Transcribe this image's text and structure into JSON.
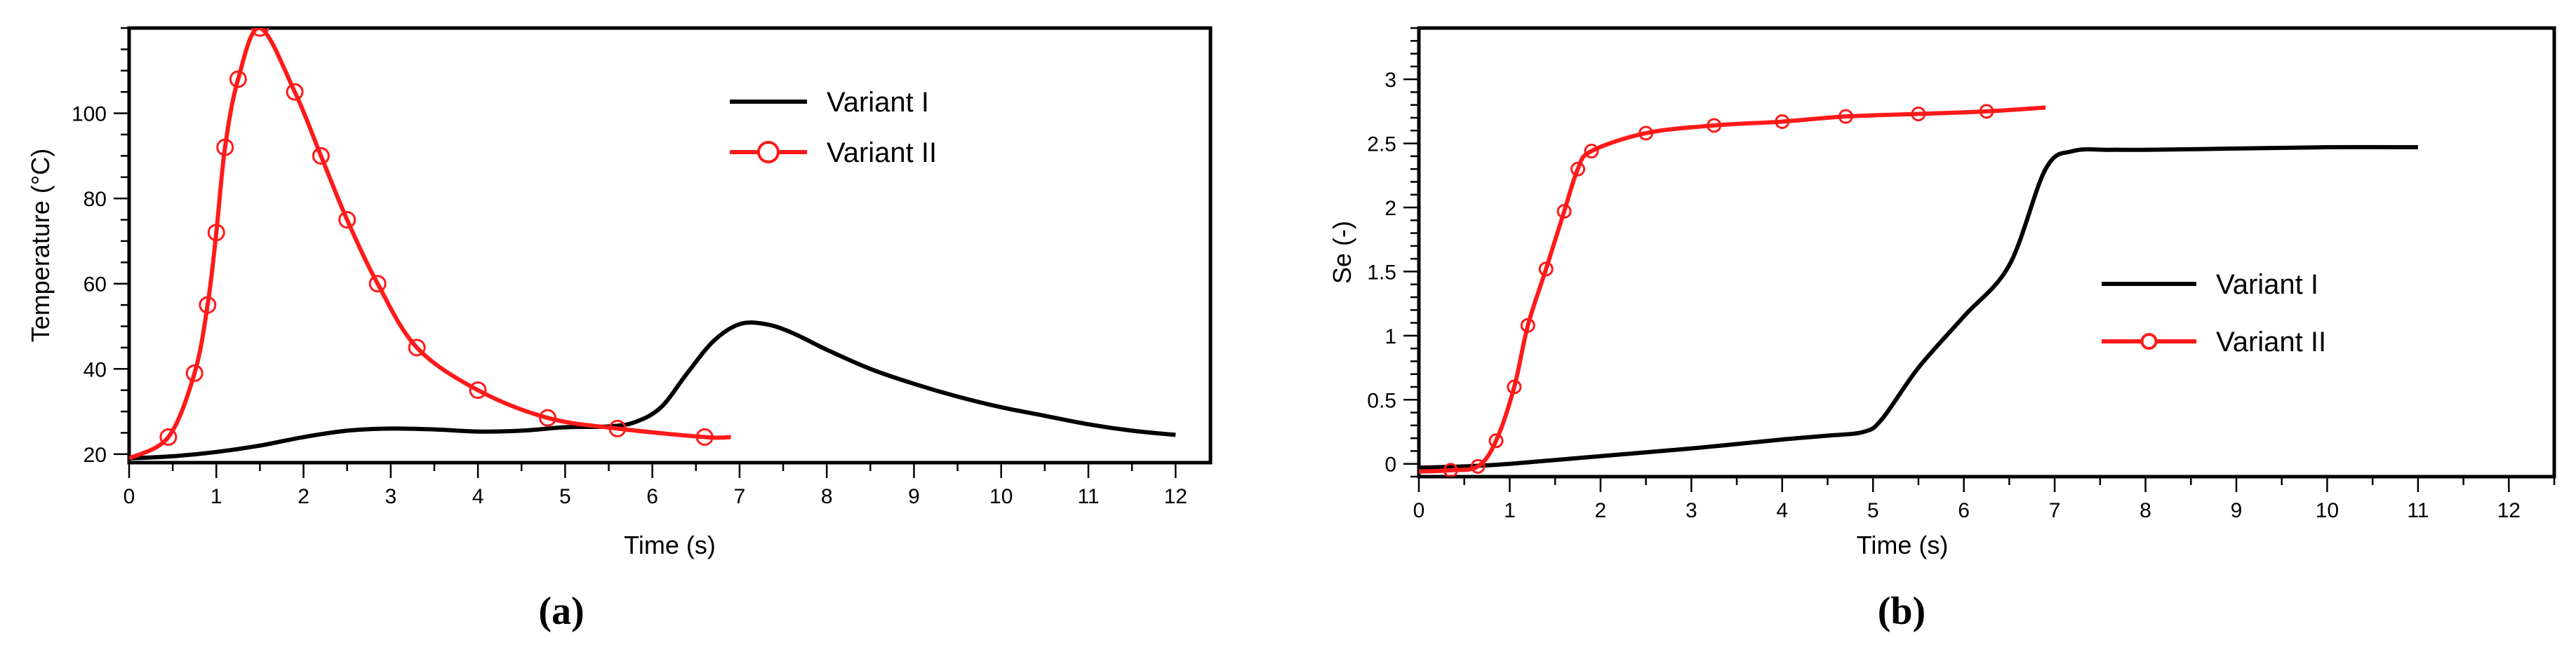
{
  "chart_data": [
    {
      "type": "line",
      "panel_label": "(a)",
      "xlabel": "Time (s)",
      "ylabel": "Temperature (°C)",
      "xlim": [
        0,
        12.4
      ],
      "ylim": [
        18,
        120
      ],
      "xticks": [
        0,
        1,
        2,
        3,
        4,
        5,
        6,
        7,
        8,
        9,
        10,
        11,
        12
      ],
      "yticks": [
        20,
        40,
        60,
        80,
        100
      ],
      "grid": false,
      "legend_position": "top-right",
      "series": [
        {
          "name": "Variant I",
          "color": "#000000",
          "marker": "none",
          "x": [
            0,
            0.5,
            1,
            1.5,
            2,
            2.5,
            3,
            3.5,
            4,
            4.5,
            5,
            5.5,
            5.8,
            6.1,
            6.4,
            6.7,
            7,
            7.3,
            7.6,
            8,
            8.5,
            9,
            9.5,
            10,
            10.5,
            11,
            11.5,
            12
          ],
          "y": [
            19,
            19.5,
            20.5,
            22,
            24,
            25.5,
            26,
            25.8,
            25.3,
            25.5,
            26.3,
            26.5,
            27.5,
            31,
            39,
            46.5,
            50.5,
            50.5,
            48.5,
            44.5,
            40,
            36.5,
            33.5,
            31,
            29,
            27,
            25.5,
            24.5
          ]
        },
        {
          "name": "Variant II",
          "color": "#ff1a1a",
          "marker": "circle",
          "x": [
            0,
            0.45,
            0.75,
            0.9,
            1.0,
            1.1,
            1.25,
            1.5,
            1.9,
            2.2,
            2.5,
            2.85,
            3.3,
            4.0,
            4.8,
            5.6,
            6.6,
            6.9
          ],
          "y": [
            19,
            24,
            39,
            55,
            72,
            92,
            108,
            120,
            105,
            90,
            75,
            60,
            45,
            35,
            28.5,
            26,
            24,
            24
          ]
        }
      ]
    },
    {
      "type": "line",
      "panel_label": "(b)",
      "xlabel": "Time (s)",
      "ylabel": "Se (-)",
      "xlim": [
        0,
        12.5
      ],
      "ylim": [
        -0.1,
        3.4
      ],
      "xticks": [
        0,
        1,
        2,
        3,
        4,
        5,
        6,
        7,
        8,
        9,
        10,
        11,
        12
      ],
      "yticks": [
        0,
        0.5,
        1,
        1.5,
        2,
        2.5,
        3
      ],
      "grid": false,
      "legend_position": "center-right",
      "series": [
        {
          "name": "Variant I",
          "color": "#000000",
          "marker": "none",
          "x": [
            0,
            0.5,
            1,
            2,
            3,
            4,
            4.5,
            4.9,
            5.1,
            5.5,
            6,
            6.5,
            6.9,
            7.2,
            7.6,
            8,
            9,
            10,
            11
          ],
          "y": [
            -0.03,
            -0.02,
            0,
            0.06,
            0.12,
            0.19,
            0.22,
            0.25,
            0.35,
            0.75,
            1.15,
            1.55,
            2.3,
            2.44,
            2.45,
            2.45,
            2.46,
            2.47,
            2.47
          ]
        },
        {
          "name": "Variant II",
          "color": "#ff1a1a",
          "marker": "circle",
          "x": [
            0,
            0.35,
            0.65,
            0.85,
            1.05,
            1.2,
            1.4,
            1.6,
            1.75,
            1.9,
            2.5,
            3.25,
            4.0,
            4.7,
            5.5,
            6.25,
            6.9
          ],
          "y": [
            -0.06,
            -0.05,
            -0.02,
            0.18,
            0.6,
            1.08,
            1.52,
            1.97,
            2.3,
            2.44,
            2.58,
            2.64,
            2.67,
            2.71,
            2.73,
            2.75,
            2.78
          ]
        }
      ]
    }
  ]
}
